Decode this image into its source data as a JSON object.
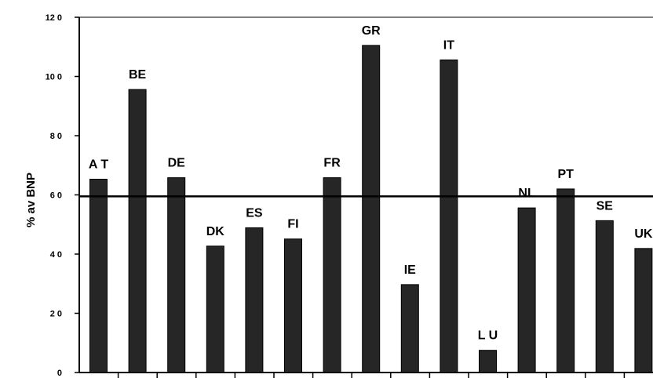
{
  "chart_data": {
    "type": "bar",
    "title": "",
    "xlabel": "",
    "ylabel": "% av BNP",
    "ylim": [
      0,
      120
    ],
    "yticks": [
      0,
      20,
      40,
      60,
      80,
      100,
      120
    ],
    "ytick_labels": [
      "0",
      "2 0",
      "4 0",
      "6 0",
      "8 0",
      "10 0",
      "12 0"
    ],
    "categories": [
      "AT",
      "BE",
      "DE",
      "DK",
      "ES",
      "FI",
      "FR",
      "GR",
      "IE",
      "IT",
      "LU",
      "NL",
      "PT",
      "SE",
      "UK"
    ],
    "bar_labels": [
      "A T",
      "BE",
      "DE",
      "DK",
      "ES",
      "FI",
      "FR",
      "GR",
      "IE",
      "IT",
      "L U",
      "NL",
      "PT",
      "SE",
      "UK"
    ],
    "values": [
      65.3,
      95.6,
      65.8,
      42.7,
      48.9,
      45.1,
      65.8,
      110.5,
      29.7,
      105.6,
      7.5,
      55.6,
      62.0,
      51.3,
      41.9
    ],
    "reference_line": 59.5,
    "grid": false,
    "colors": {
      "bar": "#262626",
      "background": "#ffffff",
      "axis": "#000000",
      "reference": "#000000"
    }
  }
}
